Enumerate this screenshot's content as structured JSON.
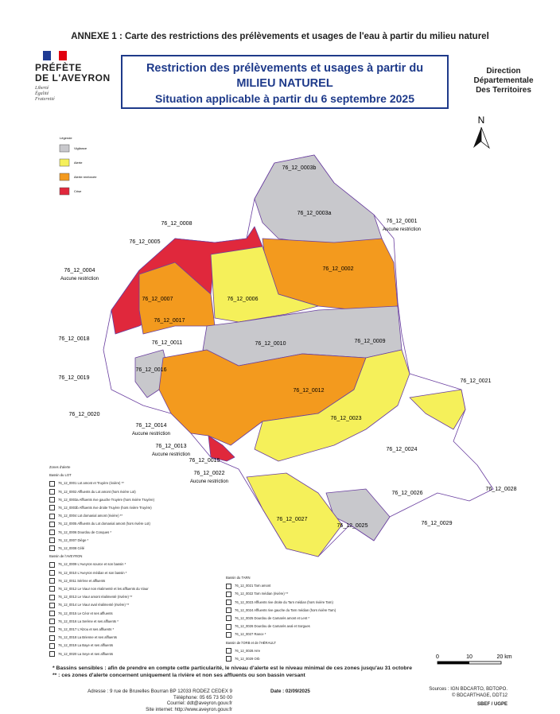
{
  "header": {
    "annex": "ANNEXE 1 : Carte des restrictions des prélèvements et usages de l'eau à partir du milieu naturel"
  },
  "logo": {
    "line1": "PRÉFÈTE",
    "line2": "DE L'AVEYRON",
    "motto": [
      "Liberté",
      "Égalité",
      "Fraternité"
    ]
  },
  "title": {
    "lines": [
      "Restriction des prélèvements et usages à partir du",
      "MILIEU NATUREL",
      "Situation applicable à partir du 6 septembre 2025"
    ]
  },
  "direction": [
    "Direction",
    "Départementale",
    "Des Territoires"
  ],
  "north": "N",
  "legend": {
    "title": "Légende",
    "items": [
      "Vigilance",
      "Alerte",
      "Alerte renforcée",
      "Crise"
    ]
  },
  "zones": [
    {
      "code": "76_12_0003b"
    },
    {
      "code": "76_12_0003a"
    },
    {
      "code": "76_12_0001",
      "note": "Aucune restriction"
    },
    {
      "code": "76_12_0008"
    },
    {
      "code": "76_12_0005"
    },
    {
      "code": "76_12_0002"
    },
    {
      "code": "76_12_0004",
      "note": "Aucune restriction"
    },
    {
      "code": "76_12_0006"
    },
    {
      "code": "76_12_0007"
    },
    {
      "code": "76_12_0017"
    },
    {
      "code": "76_12_0018"
    },
    {
      "code": "76_12_0011"
    },
    {
      "code": "76_12_0010"
    },
    {
      "code": "76_12_0009"
    },
    {
      "code": "76_12_0016"
    },
    {
      "code": "76_12_0019"
    },
    {
      "code": "76_12_0012"
    },
    {
      "code": "76_12_0021"
    },
    {
      "code": "76_12_0020"
    },
    {
      "code": "76_12_0014",
      "note": "Aucune restriction"
    },
    {
      "code": "76_12_0023"
    },
    {
      "code": "76_12_0013",
      "note": "Aucune restriction"
    },
    {
      "code": "76_12_0024"
    },
    {
      "code": "76_12_0015"
    },
    {
      "code": "76_12_0022",
      "note": "Aucune restriction"
    },
    {
      "code": "76_12_0026"
    },
    {
      "code": "76_12_0028"
    },
    {
      "code": "76_12_0027"
    },
    {
      "code": "76_12_0025"
    },
    {
      "code": "76_12_0029"
    }
  ],
  "zone_lists": {
    "title": "Zones d'alerte",
    "basins": [
      {
        "name": "Bassin du LOT",
        "items": [
          "76_12_0001 Lot amont et Truyère (rivière) **",
          "76_12_0002 Affluents du Lot amont (hors rivière Lot)",
          "76_12_0003a Affluents rive gauche Truyère (hors rivière Truyère)",
          "76_12_0003b Affluents rive droite Truyère (hors rivière Truyère)",
          "76_12_0004 Lot domanial amont (rivière) **",
          "76_12_0005 Affluents du Lot domanial amont (hors rivière Lot)",
          "76_12_0006 Dourdou de Conques *",
          "76_12_0007 Diège *",
          "76_12_0008 Célé"
        ]
      },
      {
        "name": "Bassin de l'AVEYRON",
        "items": [
          "76_12_0009 L'Aveyron source et son bassin *",
          "76_12_0010 L'Aveyron médian et son bassin *",
          "76_12_0011 Sérène et affluents",
          "76_12_0012 Le Viaur non réalimenté et les affluents du Viaur",
          "76_12_0013 Le Viaur amont réalimenté (rivière) **",
          "76_12_0014 Le Viaur aval réalimenté (rivière) **",
          "76_12_0015 Le Céor et ses affluents",
          "76_12_0016 La Serène et ses affluents *",
          "76_12_0017 L'Alzou et ses affluents *",
          "76_12_0018 La Brienne et ses affluents",
          "76_12_0019 La Baye et ses affluents",
          "76_12_0020 La Seye et ses affluents"
        ]
      },
      {
        "name": "Bassin du TARN",
        "items": [
          "76_12_0021 Tarn amont",
          "76_12_0022 Tarn médian (rivière) **",
          "76_12_0023 Affluents rive droite du Tarn médian (hors rivière Tarn)",
          "76_12_0024 Affluents rive gauche du Tarn médian (hors rivière Tarn)",
          "76_12_0025 Dourdou de Camarès amont et Lent *",
          "76_12_0026 Dourdou de Camarès aval et Sorgues",
          "76_12_0027 Rance *"
        ]
      },
      {
        "name": "Bassin de l'ORB et de l'HÉRAULT",
        "items": [
          "76_12_0028 Arre",
          "76_12_0029 Orb"
        ]
      }
    ]
  },
  "scale": {
    "labels": [
      "0",
      "10",
      "20 km"
    ]
  },
  "notes": [
    "* Bassins sensibles : afin de prendre en compte cette particularité, le niveau d'alerte est le niveau minimal de ces zones jusqu'au 31 octobre",
    "** : ces zones d'alerte concernent uniquement la rivière et non ses affluents ou son bassin versant"
  ],
  "footer": {
    "address": [
      "Adresse : 9 rue de Bruxelles Bourran BP 12033 RODEZ CEDEX 9",
      "Téléphone: 05 65 73 50 00",
      "Courriel: ddt@aveyron.gouv.fr",
      "Site internet: http://www.aveyron.gouv.fr"
    ],
    "date": "Date : 02/09/2025",
    "sources": [
      "Sources : IGN BDCARTO, BDTOPO.",
      "© BDCARTHAGE, DDT12",
      "SBEF / UGPE"
    ]
  }
}
